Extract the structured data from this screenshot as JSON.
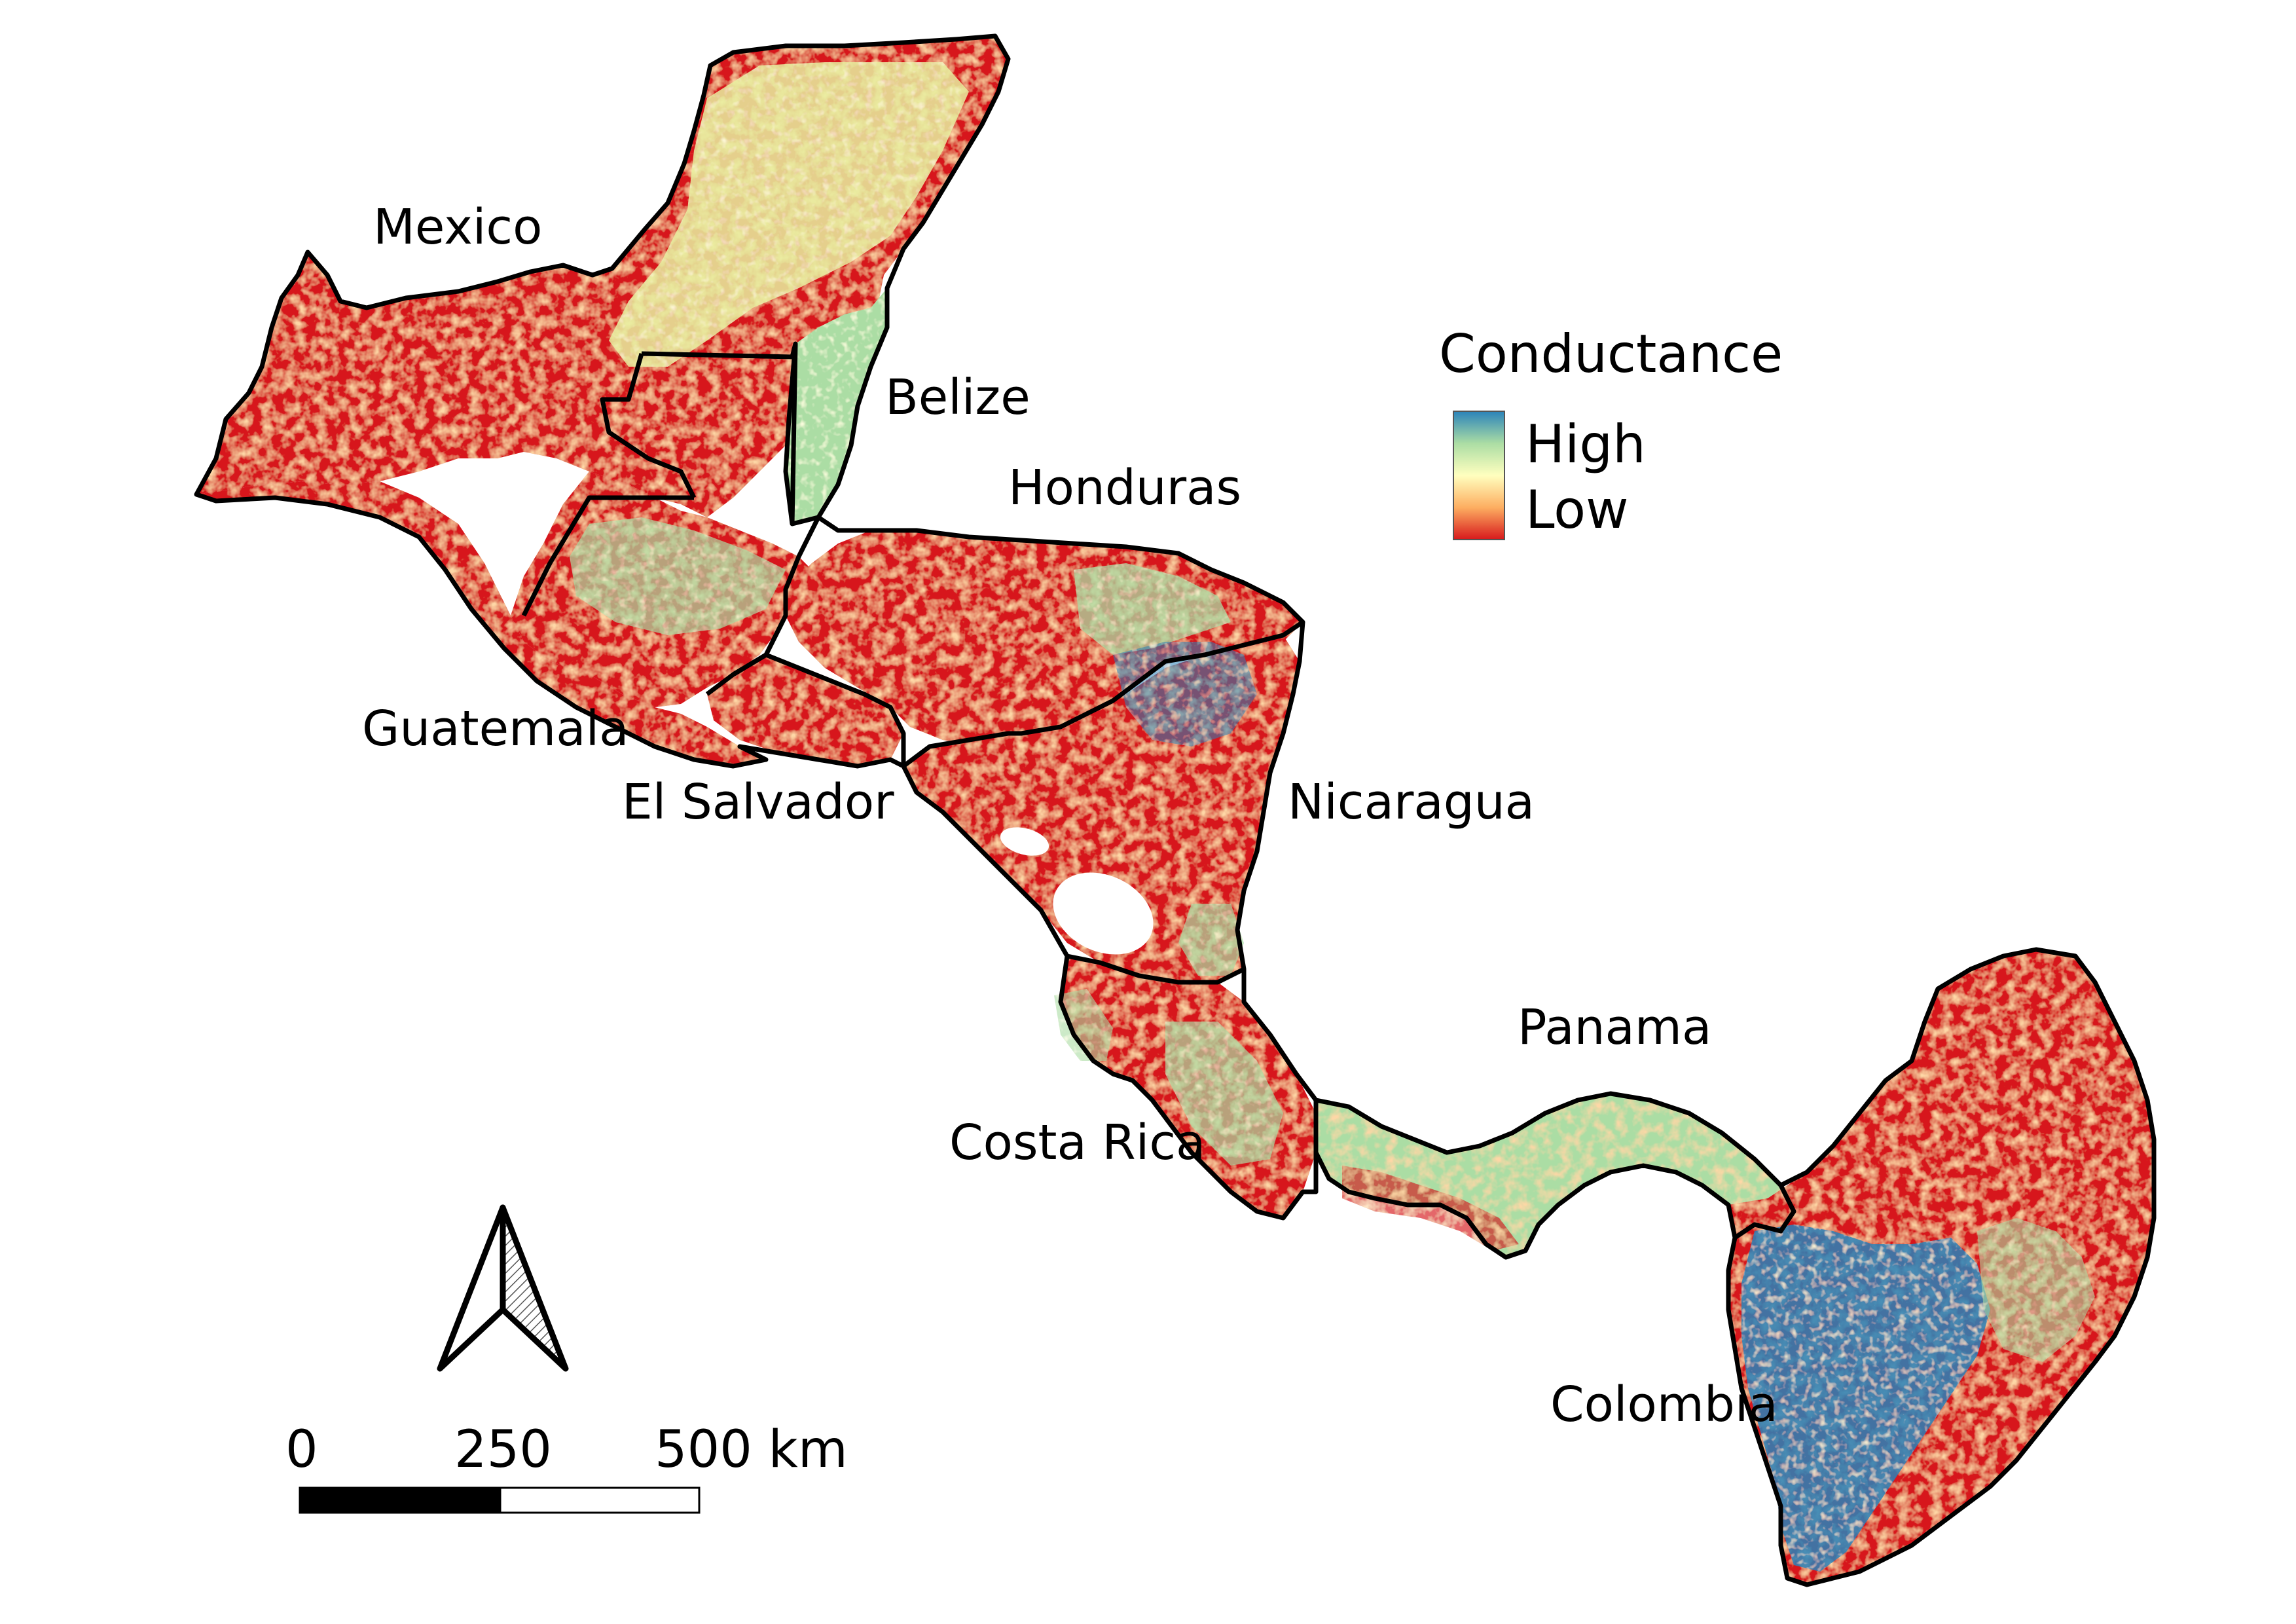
{
  "legend": {
    "title": "Conductance",
    "high_label": "High",
    "low_label": "Low",
    "ramp_colors": [
      "#2b83ba",
      "#abdda4",
      "#ffffbf",
      "#fdae61",
      "#d7191c"
    ]
  },
  "countries": {
    "mexico": "Mexico",
    "belize": "Belize",
    "honduras": "Honduras",
    "guatemala": "Guatemala",
    "el_salvador": "El Salvador",
    "nicaragua": "Nicaragua",
    "panama": "Panama",
    "costa_rica": "Costa Rica",
    "colombia": "Colombia"
  },
  "scale_bar": {
    "tick_0": "0",
    "tick_1": "250",
    "tick_2": "500 km"
  },
  "colors": {
    "low": "#d7191c",
    "mid_low": "#fdae61",
    "mid": "#ffffbf",
    "mid_high": "#abdda4",
    "high": "#2b83ba",
    "border": "#000000"
  },
  "icons": {
    "north_arrow": "north-arrow-icon"
  }
}
